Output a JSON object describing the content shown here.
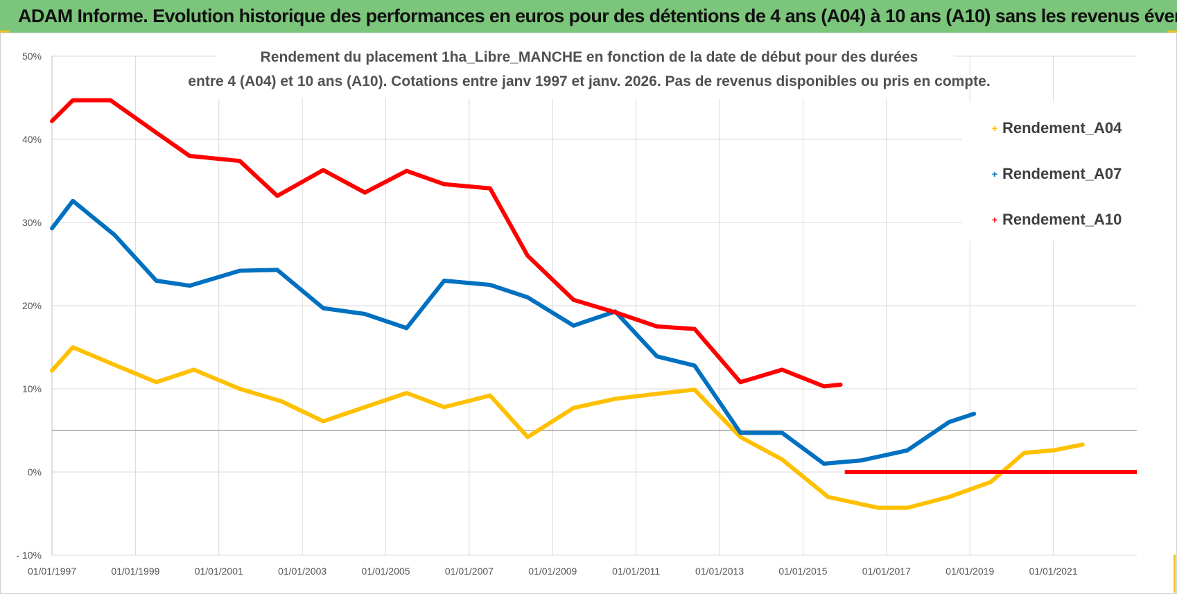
{
  "header": {
    "banner_title": "ADAM Informe. Evolution historique des performances en euros pour des détentions de 4 ans (A04) à 10 ans (A10) sans les revenus éventuels"
  },
  "colors": {
    "banner_bg": "#7bc67b",
    "A04": "#ffc000",
    "A07": "#0070c0",
    "A10": "#ff0000",
    "grid": "#d9d9d9"
  },
  "chart_data": {
    "type": "line",
    "title_line1": "Rendement du placement 1ha_Libre_MANCHE en fonction de la date de début pour des durées",
    "title_line2": "entre 4 (A04) et 10 ans (A10).  Cotations entre janv 1997 et janv. 2026. Pas de revenus disponibles ou pris en compte.",
    "xlabel": "",
    "ylabel": "",
    "x_range": [
      1997.0,
      2023.0
    ],
    "ylim": [
      -10,
      50
    ],
    "y_ticks": [
      {
        "value": 50,
        "label": "50%"
      },
      {
        "value": 40,
        "label": "40%"
      },
      {
        "value": 30,
        "label": "30%"
      },
      {
        "value": 20,
        "label": "20%"
      },
      {
        "value": 10,
        "label": "10%"
      },
      {
        "value": 0,
        "label": "0%"
      },
      {
        "value": -10,
        "label": "- 10%"
      }
    ],
    "x_ticks": [
      {
        "value": 1997,
        "label": "01/01/1997"
      },
      {
        "value": 1999,
        "label": "01/01/1999"
      },
      {
        "value": 2001,
        "label": "01/01/2001"
      },
      {
        "value": 2003,
        "label": "01/01/2003"
      },
      {
        "value": 2005,
        "label": "01/01/2005"
      },
      {
        "value": 2007,
        "label": "01/01/2007"
      },
      {
        "value": 2009,
        "label": "01/01/2009"
      },
      {
        "value": 2011,
        "label": "01/01/2011"
      },
      {
        "value": 2013,
        "label": "01/01/2013"
      },
      {
        "value": 2015,
        "label": "01/01/2015"
      },
      {
        "value": 2017,
        "label": "01/01/2017"
      },
      {
        "value": 2019,
        "label": "01/01/2019"
      },
      {
        "value": 2021,
        "label": "01/01/2021"
      }
    ],
    "reference_line": 5,
    "legend_position": "top-right",
    "series": [
      {
        "name": "Rendement_A04",
        "color": "#ffc000",
        "points": [
          [
            1997.0,
            12.2
          ],
          [
            1997.5,
            15.0
          ],
          [
            1998.3,
            13.3
          ],
          [
            1999.5,
            10.8
          ],
          [
            2000.4,
            12.3
          ],
          [
            2001.5,
            10.0
          ],
          [
            2002.5,
            8.5
          ],
          [
            2003.5,
            6.1
          ],
          [
            2004.5,
            7.8
          ],
          [
            2005.5,
            9.5
          ],
          [
            2006.4,
            7.8
          ],
          [
            2007.5,
            9.2
          ],
          [
            2008.4,
            4.2
          ],
          [
            2009.5,
            7.7
          ],
          [
            2010.5,
            8.8
          ],
          [
            2011.5,
            9.4
          ],
          [
            2012.4,
            9.9
          ],
          [
            2013.5,
            4.2
          ],
          [
            2014.5,
            1.5
          ],
          [
            2015.6,
            -3.0
          ],
          [
            2016.8,
            -4.3
          ],
          [
            2017.5,
            -4.3
          ],
          [
            2018.5,
            -3.0
          ],
          [
            2019.5,
            -1.2
          ],
          [
            2020.3,
            2.3
          ],
          [
            2021.0,
            2.6
          ],
          [
            2021.7,
            3.3
          ]
        ]
      },
      {
        "name": "Rendement_A07",
        "color": "#0070c0",
        "points": [
          [
            1997.0,
            29.3
          ],
          [
            1997.5,
            32.6
          ],
          [
            1998.5,
            28.5
          ],
          [
            1999.5,
            23.0
          ],
          [
            2000.3,
            22.4
          ],
          [
            2001.5,
            24.2
          ],
          [
            2002.4,
            24.3
          ],
          [
            2003.5,
            19.7
          ],
          [
            2004.5,
            19.0
          ],
          [
            2005.5,
            17.3
          ],
          [
            2006.4,
            23.0
          ],
          [
            2007.5,
            22.5
          ],
          [
            2008.4,
            21.0
          ],
          [
            2009.5,
            17.6
          ],
          [
            2010.5,
            19.3
          ],
          [
            2011.5,
            13.9
          ],
          [
            2012.4,
            12.8
          ],
          [
            2013.5,
            4.7
          ],
          [
            2014.5,
            4.7
          ],
          [
            2015.5,
            1.0
          ],
          [
            2016.4,
            1.4
          ],
          [
            2017.5,
            2.6
          ],
          [
            2018.5,
            6.0
          ],
          [
            2019.1,
            7.0
          ]
        ]
      },
      {
        "name": "Rendement_A10",
        "color": "#ff0000",
        "points": [
          [
            1997.0,
            42.2
          ],
          [
            1997.5,
            44.7
          ],
          [
            1998.4,
            44.7
          ],
          [
            1999.5,
            40.8
          ],
          [
            2000.3,
            38.0
          ],
          [
            2001.5,
            37.4
          ],
          [
            2002.4,
            33.2
          ],
          [
            2003.5,
            36.3
          ],
          [
            2004.5,
            33.6
          ],
          [
            2005.5,
            36.2
          ],
          [
            2006.4,
            34.6
          ],
          [
            2007.5,
            34.1
          ],
          [
            2008.4,
            26.0
          ],
          [
            2009.5,
            20.7
          ],
          [
            2010.5,
            19.2
          ],
          [
            2011.5,
            17.5
          ],
          [
            2012.4,
            17.2
          ],
          [
            2013.5,
            10.8
          ],
          [
            2014.5,
            12.3
          ],
          [
            2015.5,
            10.3
          ],
          [
            2015.9,
            10.5
          ]
        ],
        "flat_segment": {
          "from": 2016.0,
          "to": 2023.0,
          "value": 0
        }
      }
    ]
  }
}
